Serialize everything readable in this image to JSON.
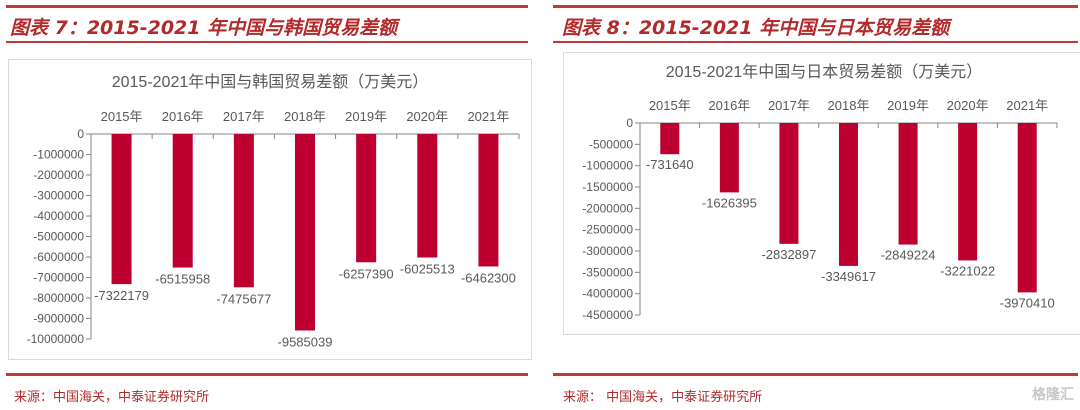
{
  "panels": [
    {
      "figure_title": "图表 7：2015-2021 年中国与韩国贸易差额",
      "source": "来源：中国海关，中泰证券研究所"
    },
    {
      "figure_title": "图表 8：2015-2021 年中国与日本贸易差额",
      "source": "来源：  中国海关，中泰证券研究所"
    }
  ],
  "watermark": "格隆汇",
  "colors": {
    "bar": "#be0030",
    "accent": "#c0393b"
  },
  "chart_data": [
    {
      "type": "bar",
      "title": "2015-2021年中国与韩国贸易差额（万美元）",
      "categories": [
        "2015年",
        "2016年",
        "2017年",
        "2018年",
        "2019年",
        "2020年",
        "2021年"
      ],
      "values": [
        -7322179,
        -6515958,
        -7475677,
        -9585039,
        -6257390,
        -6025513,
        -6462300
      ],
      "data_labels": [
        "-7322179",
        "-6515958",
        "-7475677",
        "-9585039",
        "-6257390",
        "-6025513",
        "-6462300"
      ],
      "ylim": [
        -10000000,
        0
      ],
      "yticks": [
        0,
        -1000000,
        -2000000,
        -3000000,
        -4000000,
        -5000000,
        -6000000,
        -7000000,
        -8000000,
        -9000000,
        -10000000
      ],
      "ytick_labels": [
        "0",
        "-1000000",
        "-2000000",
        "-3000000",
        "-4000000",
        "-5000000",
        "-6000000",
        "-7000000",
        "-8000000",
        "-9000000",
        "-10000000"
      ],
      "xaxis_position": "top",
      "grid": false,
      "legend": "none"
    },
    {
      "type": "bar",
      "title": "2015-2021年中国与日本贸易差额（万美元）",
      "categories": [
        "2015年",
        "2016年",
        "2017年",
        "2018年",
        "2019年",
        "2020年",
        "2021年"
      ],
      "values": [
        -731640,
        -1626395,
        -2832897,
        -3349617,
        -2849224,
        -3221022,
        -3970410
      ],
      "data_labels": [
        "-731640",
        "-1626395",
        "-2832897",
        "-3349617",
        "-2849224",
        "-3221022",
        "-3970410"
      ],
      "ylim": [
        -4500000,
        0
      ],
      "yticks": [
        0,
        -500000,
        -1000000,
        -1500000,
        -2000000,
        -2500000,
        -3000000,
        -3500000,
        -4000000,
        -4500000
      ],
      "ytick_labels": [
        "0",
        "-500000",
        "-1000000",
        "-1500000",
        "-2000000",
        "-2500000",
        "-3000000",
        "-3500000",
        "-4000000",
        "-4500000"
      ],
      "xaxis_position": "top",
      "grid": false,
      "legend": "none"
    }
  ]
}
